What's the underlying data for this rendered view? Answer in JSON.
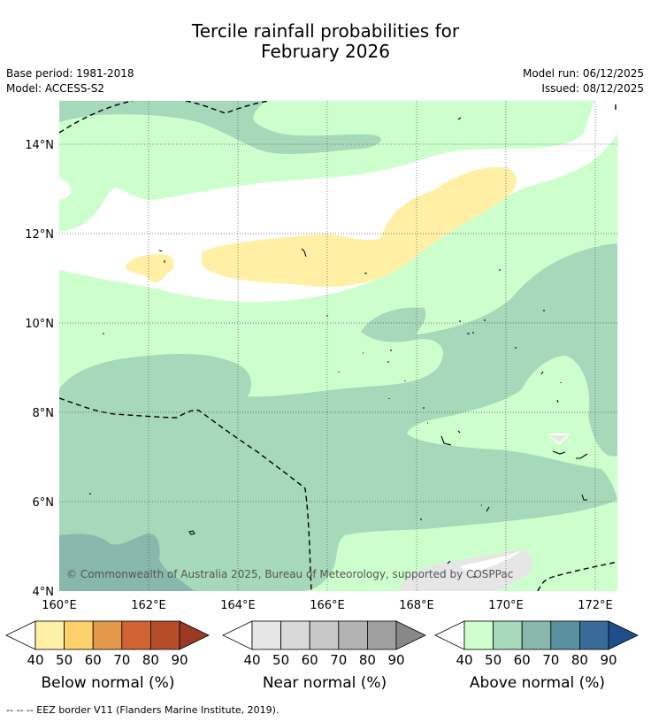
{
  "title_line1": "Tercile rainfall probabilities for",
  "title_line2": "February 2026",
  "base_period": "Base period: 1981-2018",
  "model": "Model: ACCESS-S2",
  "model_run": "Model run: 06/12/2025",
  "issued": "Issued: 08/12/2025",
  "copyright": "© Commonwealth of Australia 2025, Bureau of Meteorology, supported by COSPPac",
  "map": {
    "lon_ticks": [
      "160°E",
      "162°E",
      "164°E",
      "166°E",
      "168°E",
      "170°E",
      "172°E"
    ],
    "lat_ticks": [
      "14°N",
      "12°N",
      "10°N",
      "8°N",
      "6°N",
      "4°N"
    ],
    "lon_range": [
      160,
      172.5
    ],
    "lat_range": [
      4,
      15
    ]
  },
  "colorbars": [
    {
      "name": "below",
      "label": "Below normal (%)",
      "ticks": [
        "40",
        "50",
        "60",
        "70",
        "80",
        "90"
      ],
      "colors": [
        "#fff0a6",
        "#fdd06b",
        "#e3984a",
        "#cf6432",
        "#b54d2a",
        "#9a3a22"
      ]
    },
    {
      "name": "near",
      "label": "Near normal (%)",
      "ticks": [
        "40",
        "50",
        "60",
        "70",
        "80",
        "90"
      ],
      "colors": [
        "#e6e6e6",
        "#d9d9d9",
        "#c8c8c8",
        "#b3b3b3",
        "#a0a0a0",
        "#888888"
      ]
    },
    {
      "name": "above",
      "label": "Above normal (%)",
      "ticks": [
        "40",
        "50",
        "60",
        "70",
        "80",
        "90"
      ],
      "colors": [
        "#ccffcc",
        "#a6d9b9",
        "#87b8ab",
        "#5a91a0",
        "#3a6a98",
        "#1f4f8a"
      ]
    }
  ],
  "legend_footnote": "--  --  -- EEZ border V11 (Flanders Marine Institute, 2019)."
}
